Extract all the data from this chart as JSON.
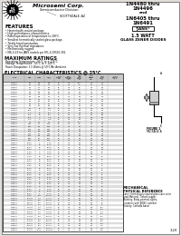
{
  "title_lines": [
    "1N4480 thru",
    "1N4496",
    "and",
    "1N6405 thru",
    "1N6491"
  ],
  "jans_label": "*JANS*",
  "watt_label": "1.5 WATT",
  "diode_label": "GLASS ZENER DIODES",
  "company": "Microsemi Corp.",
  "subtitle": "Semiconductor Division",
  "location": "SCOTTSDALE, AZ",
  "features_title": "FEATURES",
  "features": [
    "• Hermetically sealed package.",
    "• High performance characteristics.",
    "• Rated operation of temperature to 200°C.",
    "• Smallest hermetically sealed glass package.",
    "• Totally fused passivation.",
    "• Very low thermal impedance.",
    "• Mechanically rugged.",
    "• MIL-S-19 for JANS models per MIL-S-19500-356."
  ],
  "max_ratings_title": "MAXIMUM RATINGS",
  "max_ratings": [
    "Operating Temperature: -65°C to + 175°C",
    "Storage Temperature: -65°C to + 200°C",
    "Power Dissipation: 1.5 Watts @ 50°C/Air Ambient"
  ],
  "elec_char_title": "ELECTRICAL CHARACTERISTICS @ 25°C",
  "table_rows": [
    [
      "1N4480",
      "3.4",
      "3.6",
      "3.8",
      "20",
      "1.0",
      "100",
      "1.0",
      "1.0",
      ""
    ],
    [
      "1N4481",
      "3.7",
      "3.9",
      "4.1",
      "20",
      "1.0",
      "50",
      "1.0",
      "1.0",
      ""
    ],
    [
      "1N4482",
      "4.4",
      "4.7",
      "5.0",
      "20",
      "1.0",
      "10",
      "1.0",
      "2.0",
      ""
    ],
    [
      "1N4483",
      "4.7",
      "5.1",
      "5.4",
      "20",
      "1.0",
      "10",
      "1.0",
      "2.0",
      ""
    ],
    [
      "1N4484",
      "5.2",
      "5.6",
      "5.9",
      "20",
      "1.0",
      "5.0",
      "1.0",
      "3.0",
      ""
    ],
    [
      "1N4485",
      "5.8",
      "6.2",
      "6.6",
      "20",
      "1.0",
      "5.0",
      "1.0",
      "3.5",
      ""
    ],
    [
      "1N4486",
      "6.4",
      "6.8",
      "7.2",
      "20",
      "1.0",
      "5.0",
      "0.5",
      "4.0",
      ""
    ],
    [
      "1N4487",
      "6.9",
      "7.5",
      "7.9",
      "20",
      "1.0",
      "5.0",
      "0.5",
      "4.0",
      ""
    ],
    [
      "1N4488",
      "7.3",
      "8.2",
      "8.7",
      "20",
      "1.0",
      "5.0",
      "0.5",
      "5.0",
      ""
    ],
    [
      "1N4489",
      "8.0",
      "8.7",
      "9.1",
      "20",
      "1.0",
      "5.0",
      "0.5",
      "5.0",
      ""
    ],
    [
      "1N4490",
      "8.7",
      "9.1",
      "9.6",
      "20",
      "1.0",
      "5.0",
      "0.5",
      "6.0",
      ""
    ],
    [
      "1N4491",
      "9.4",
      "10",
      "10.6",
      "20",
      "1.0",
      "5.0",
      "0.5",
      "6.0",
      ""
    ],
    [
      "1N4492",
      "10.4",
      "11",
      "11.6",
      "20",
      "1.0",
      "5.0",
      "0.5",
      "7.0",
      ""
    ],
    [
      "1N4493",
      "11.4",
      "12",
      "12.7",
      "20",
      "1.0",
      "5.0",
      "0.5",
      "8.0",
      ""
    ],
    [
      "1N4494",
      "12.3",
      "13",
      "13.7",
      "20",
      "1.0",
      "5.0",
      "0.5",
      "8.0",
      ""
    ],
    [
      "1N4495",
      "14.2",
      "15",
      "15.8",
      "20",
      "1.0",
      "5.0",
      "0.5",
      "9.0",
      ""
    ],
    [
      "1N4496",
      "15.2",
      "16",
      "16.8",
      "20",
      "1.0",
      "5.0",
      "0.5",
      "10",
      ""
    ],
    [
      "1N6405",
      "4.2",
      "4.3",
      "4.4",
      "20",
      "1.0",
      "100",
      "1.0",
      "1.0",
      ""
    ],
    [
      "1N6406",
      "4.65",
      "4.7",
      "4.75",
      "20",
      "1.0",
      "10",
      "1.0",
      "2.0",
      ""
    ],
    [
      "1N6407",
      "5.55",
      "5.6",
      "5.65",
      "20",
      "1.0",
      "5.0",
      "1.0",
      "3.0",
      ""
    ],
    [
      "1N6408",
      "6.15",
      "6.2",
      "6.25",
      "20",
      "1.0",
      "5.0",
      "1.0",
      "3.5",
      ""
    ],
    [
      "1N6409",
      "6.75",
      "6.8",
      "6.85",
      "20",
      "1.0",
      "5.0",
      "0.5",
      "4.0",
      ""
    ],
    [
      "1N6410",
      "7.45",
      "7.5",
      "7.55",
      "20",
      "1.0",
      "5.0",
      "0.5",
      "4.0",
      ""
    ],
    [
      "1N6411",
      "8.15",
      "8.2",
      "8.25",
      "20",
      "1.0",
      "5.0",
      "0.5",
      "5.0",
      ""
    ],
    [
      "1N6412",
      "8.65",
      "8.7",
      "8.75",
      "20",
      "1.0",
      "5.0",
      "0.5",
      "5.0",
      ""
    ],
    [
      "1N6413",
      "9.05",
      "9.1",
      "9.15",
      "20",
      "1.0",
      "5.0",
      "0.5",
      "6.0",
      ""
    ],
    [
      "1N6414",
      "10.95",
      "11",
      "11.05",
      "20",
      "1.0",
      "5.0",
      "0.5",
      "7.0",
      ""
    ],
    [
      "1N6415",
      "11.95",
      "12",
      "12.05",
      "20",
      "1.0",
      "5.0",
      "0.5",
      "8.0",
      ""
    ],
    [
      "1N6416",
      "12.95",
      "13",
      "13.05",
      "20",
      "1.0",
      "5.0",
      "0.5",
      "8.0",
      ""
    ],
    [
      "1N6417",
      "14.95",
      "15",
      "15.05",
      "20",
      "1.0",
      "5.0",
      "0.5",
      "9.0",
      ""
    ],
    [
      "1N6418",
      "15.95",
      "16",
      "16.05",
      "20",
      "1.0",
      "5.0",
      "0.5",
      "10",
      ""
    ],
    [
      "1N6419",
      "17.95",
      "18",
      "18.05",
      "20",
      "1.0",
      "5.0",
      "0.5",
      "11",
      ""
    ],
    [
      "1N6420",
      "19.95",
      "20",
      "20.05",
      "20",
      "1.0",
      "5.0",
      "0.5",
      "12",
      ""
    ],
    [
      "1N6421",
      "21.95",
      "22",
      "22.05",
      "20",
      "1.0",
      "5.0",
      "0.5",
      "14",
      ""
    ],
    [
      "1N6422",
      "23.95",
      "24",
      "24.05",
      "20",
      "1.0",
      "5.0",
      "0.5",
      "15",
      ""
    ],
    [
      "1N6423",
      "26.95",
      "27",
      "27.05",
      "20",
      "1.0",
      "5.0",
      "0.5",
      "17",
      ""
    ],
    [
      "1N6424",
      "29.95",
      "30",
      "30.05",
      "20",
      "1.0",
      "5.0",
      "0.5",
      "19",
      ""
    ],
    [
      "1N6425",
      "32.95",
      "33",
      "33.05",
      "20",
      "1.0",
      "5.0",
      "0.5",
      "21",
      ""
    ],
    [
      "1N6426",
      "35.95",
      "36",
      "36.05",
      "20",
      "1.0",
      "5.0",
      "0.5",
      "23",
      ""
    ],
    [
      "1N6427",
      "38.95",
      "39",
      "39.05",
      "20",
      "1.0",
      "5.0",
      "0.5",
      "25",
      ""
    ],
    [
      "1N6428",
      "42.95",
      "43",
      "43.05",
      "20",
      "1.0",
      "5.0",
      "0.5",
      "27",
      ""
    ],
    [
      "1N6429",
      "46.95",
      "47",
      "47.05",
      "20",
      "1.0",
      "5.0",
      "0.5",
      "30",
      ""
    ],
    [
      "1N6430",
      "50.95",
      "51",
      "51.05",
      "20",
      "1.0",
      "5.0",
      "0.5",
      "32",
      ""
    ],
    [
      "1N6431",
      "55.95",
      "56",
      "56.05",
      "20",
      "1.0",
      "5.0",
      "0.5",
      "36",
      ""
    ],
    [
      "1N6432",
      "61.95",
      "62",
      "62.05",
      "20",
      "1.0",
      "5.0",
      "0.5",
      "39",
      ""
    ],
    [
      "1N6433",
      "67.95",
      "68",
      "68.05",
      "20",
      "1.0",
      "5.0",
      "0.5",
      "43",
      ""
    ],
    [
      "1N6434",
      "74.95",
      "75",
      "75.05",
      "20",
      "1.0",
      "5.0",
      "0.5",
      "47",
      ""
    ],
    [
      "1N6435",
      "81.95",
      "82",
      "82.05",
      "20",
      "1.0",
      "5.0",
      "0.5",
      "52",
      ""
    ],
    [
      "1N6436",
      "90.95",
      "91",
      "91.05",
      "20",
      "1.0",
      "5.0",
      "0.5",
      "58",
      ""
    ],
    [
      "1N6437",
      "99.95",
      "100",
      "100.05",
      "20",
      "1.0",
      "5.0",
      "0.5",
      "63",
      ""
    ],
    [
      "1N6438",
      "109.95",
      "110",
      "110.05",
      "20",
      "1.0",
      "5.0",
      "0.5",
      "70",
      ""
    ],
    [
      "1N6439",
      "119.95",
      "120",
      "120.05",
      "20",
      "1.0",
      "5.0",
      "0.5",
      "76",
      ""
    ],
    [
      "1N6440",
      "129.95",
      "130",
      "130.05",
      "20",
      "1.0",
      "5.0",
      "0.5",
      "82",
      ""
    ],
    [
      "1N6441",
      "149.95",
      "150",
      "150.05",
      "20",
      "1.0",
      "5.0",
      "0.5",
      "95",
      ""
    ],
    [
      "1N6442",
      "159.95",
      "160",
      "160.05",
      "20",
      "1.0",
      "5.0",
      "0.5",
      "102",
      ""
    ],
    [
      "1N6443",
      "169.95",
      "170",
      "170.05",
      "20",
      "1.0",
      "5.0",
      "0.5",
      "108",
      ""
    ],
    [
      "1N6444",
      "179.95",
      "180",
      "180.05",
      "20",
      "1.0",
      "5.0",
      "0.5",
      "114",
      ""
    ],
    [
      "1N6445",
      "189.95",
      "190",
      "190.05",
      "20",
      "1.0",
      "5.0",
      "0.5",
      "121",
      ""
    ],
    [
      "1N6446",
      "199.95",
      "200",
      "200.05",
      "20",
      "1.0",
      "5.0",
      "0.5",
      "127",
      ""
    ],
    [
      "1N6447",
      "209.95",
      "210",
      "210.05",
      "20",
      "1.0",
      "5.0",
      "0.5",
      "133",
      ""
    ],
    [
      "1N6448",
      "219.95",
      "220",
      "220.05",
      "20",
      "1.0",
      "5.0",
      "0.5",
      "140",
      ""
    ],
    [
      "1N6449",
      "229.95",
      "230",
      "230.05",
      "20",
      "1.0",
      "5.0",
      "0.5",
      "146",
      ""
    ],
    [
      "1N6450",
      "239.95",
      "240",
      "240.05",
      "20",
      "1.0",
      "5.0",
      "0.5",
      "152",
      ""
    ],
    [
      "1N6451",
      "249.95",
      "250",
      "250.05",
      "20",
      "1.0",
      "5.0",
      "0.5",
      "159",
      ""
    ],
    [
      "1N6491",
      "999.95",
      "1000",
      "1000.05",
      "20",
      "1.0",
      "5.0",
      "0.5",
      "635",
      ""
    ]
  ],
  "mech_title": "MECHANICAL",
  "mech_subtitle": "PHYSICAL REFERENCE",
  "mech_lines": [
    "Case: Hermetically sealed glass case color",
    "Lead Material: Tinned copper",
    "Marking: Body-painted, alpha-",
    "  numeric with JEDEC number",
    "Polarity: Cathode band"
  ],
  "page_num": "3-29",
  "bg_color": "#ffffff",
  "text_color": "#000000",
  "table_header_bg": "#c8c8c8",
  "table_row_bg1": "#ffffff",
  "table_row_bg2": "#e0e0e0"
}
